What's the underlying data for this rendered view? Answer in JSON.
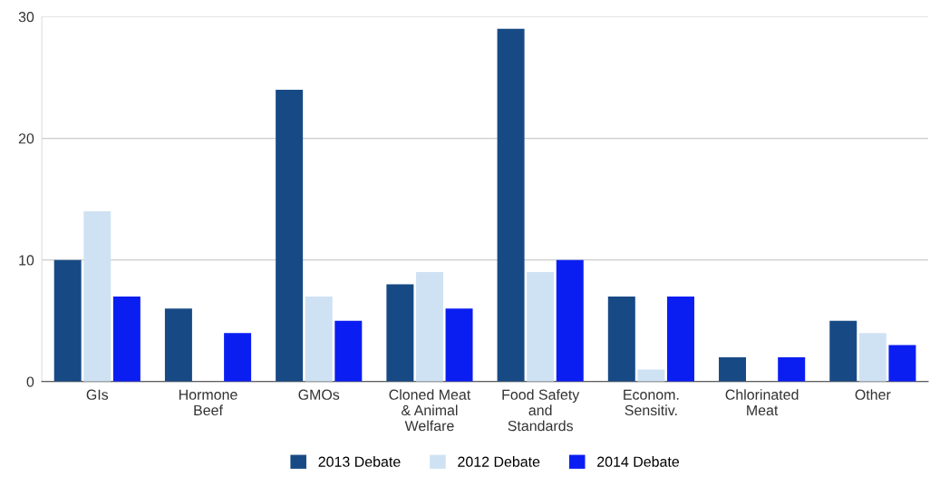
{
  "chart_data": {
    "type": "bar",
    "categories": [
      "GIs",
      "Hormone\nBeef",
      "GMOs",
      "Cloned Meat\n& Animal\nWelfare",
      "Food Safety\nand\nStandards",
      "Econom.\nSensitiv.",
      "Chlorinated\nMeat",
      "Other"
    ],
    "series": [
      {
        "name": "2013 Debate",
        "color": "#174a85",
        "values": [
          10,
          6,
          24,
          8,
          29,
          7,
          2,
          5
        ]
      },
      {
        "name": "2012 Debate",
        "color": "#cfe2f3",
        "values": [
          14,
          null,
          7,
          9,
          9,
          1,
          null,
          4
        ]
      },
      {
        "name": "2014 Debate",
        "color": "#0b1ef2",
        "values": [
          7,
          4,
          5,
          6,
          10,
          7,
          2,
          3
        ]
      }
    ],
    "ylim": [
      0,
      30
    ],
    "yticks": [
      0,
      10,
      20,
      30
    ],
    "grid": "y",
    "legend": "bottom"
  }
}
